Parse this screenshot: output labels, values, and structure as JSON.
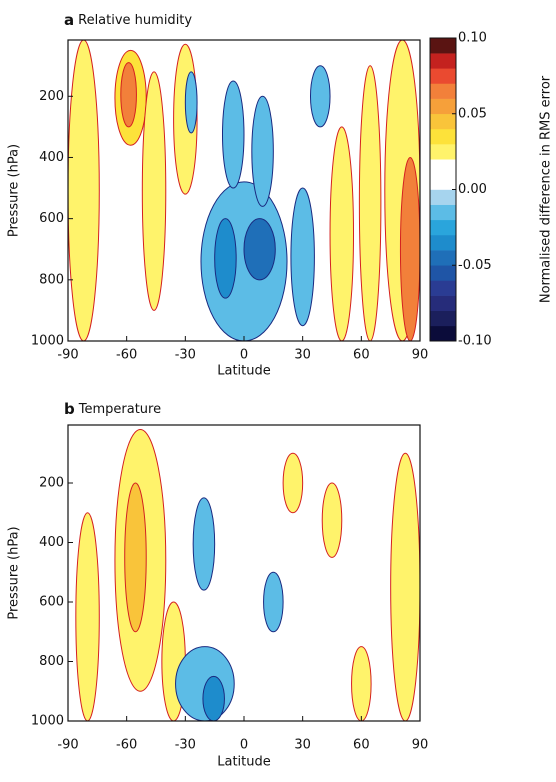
{
  "chart_data": [
    {
      "type": "contour",
      "panel_label": "a",
      "title": "Relative humidity",
      "x_label": "Latitude",
      "y_label": "Pressure (hPa)",
      "xlim": [
        -90,
        90
      ],
      "xticks": [
        -90,
        -60,
        -30,
        0,
        30,
        60,
        90
      ],
      "ylim": [
        1000,
        16
      ],
      "yticks": [
        200,
        400,
        600,
        800,
        1000
      ],
      "regions": [
        {
          "lat": [
            -90,
            -74
          ],
          "p": [
            16,
            1000
          ],
          "value": 0.02
        },
        {
          "lat": [
            -66,
            -50
          ],
          "p": [
            50,
            360
          ],
          "value": 0.03
        },
        {
          "lat": [
            -63,
            -55
          ],
          "p": [
            90,
            300
          ],
          "value": 0.06
        },
        {
          "lat": [
            -52,
            -40
          ],
          "p": [
            120,
            900
          ],
          "value": 0.02
        },
        {
          "lat": [
            -36,
            -24
          ],
          "p": [
            30,
            520
          ],
          "value": 0.02
        },
        {
          "lat": [
            -30,
            -24
          ],
          "p": [
            120,
            320
          ],
          "value": -0.02
        },
        {
          "lat": [
            -22,
            22
          ],
          "p": [
            480,
            1000
          ],
          "value": -0.02
        },
        {
          "lat": [
            -15,
            -4
          ],
          "p": [
            600,
            860
          ],
          "value": -0.04
        },
        {
          "lat": [
            0,
            16
          ],
          "p": [
            600,
            800
          ],
          "value": -0.05
        },
        {
          "lat": [
            -11,
            0
          ],
          "p": [
            150,
            500
          ],
          "value": -0.02
        },
        {
          "lat": [
            4,
            15
          ],
          "p": [
            200,
            560
          ],
          "value": -0.02
        },
        {
          "lat": [
            24,
            36
          ],
          "p": [
            500,
            950
          ],
          "value": -0.02
        },
        {
          "lat": [
            34,
            44
          ],
          "p": [
            100,
            300
          ],
          "value": -0.02
        },
        {
          "lat": [
            44,
            56
          ],
          "p": [
            300,
            1000
          ],
          "value": 0.02
        },
        {
          "lat": [
            59,
            70
          ],
          "p": [
            100,
            1000
          ],
          "value": 0.02
        },
        {
          "lat": [
            72,
            90
          ],
          "p": [
            16,
            1000
          ],
          "value": 0.02
        },
        {
          "lat": [
            80,
            90
          ],
          "p": [
            400,
            1000
          ],
          "value": 0.06
        }
      ],
      "colorbar": {
        "label": "Normalised difference in RMS error",
        "lim": [
          -0.1,
          0.1
        ],
        "colors": [
          "#0b0c3a",
          "#1b1f5c",
          "#262c7a",
          "#2a3c93",
          "#1f55a6",
          "#1f6fb8",
          "#1e8ccc",
          "#2aa5dc",
          "#5cbce6",
          "#a6d4ee",
          "#ffffff",
          "#ffffff",
          "#fff36b",
          "#fde23a",
          "#f9c43a",
          "#f6a03a",
          "#f2803a",
          "#ea4a30",
          "#c4221f",
          "#5a1412"
        ],
        "ticks": [
          {
            "value": 0.1,
            "label": "0.10"
          },
          {
            "value": 0.05,
            "label": "0.05"
          },
          {
            "value": 0,
            "label": "0.00"
          },
          {
            "value": -0.05,
            "label": "-0.05"
          },
          {
            "value": -0.1,
            "label": "-0.10"
          }
        ]
      }
    },
    {
      "type": "contour",
      "panel_label": "b",
      "title": "Temperature",
      "x_label": "Latitude",
      "y_label": "Pressure (hPa)",
      "xlim": [
        -90,
        90
      ],
      "xticks": [
        -90,
        -60,
        -30,
        0,
        30,
        60,
        90
      ],
      "ylim": [
        1000,
        5
      ],
      "yticks": [
        200,
        400,
        600,
        800,
        1000
      ],
      "regions": [
        {
          "lat": [
            -86,
            -74
          ],
          "p": [
            300,
            1000
          ],
          "value": 0.02
        },
        {
          "lat": [
            -66,
            -40
          ],
          "p": [
            20,
            900
          ],
          "value": 0.02
        },
        {
          "lat": [
            -61,
            -50
          ],
          "p": [
            200,
            700
          ],
          "value": 0.04
        },
        {
          "lat": [
            -42,
            -30
          ],
          "p": [
            600,
            1000
          ],
          "value": 0.02
        },
        {
          "lat": [
            -35,
            -5
          ],
          "p": [
            750,
            1000
          ],
          "value": -0.02
        },
        {
          "lat": [
            -21,
            -10
          ],
          "p": [
            850,
            1000
          ],
          "value": -0.04
        },
        {
          "lat": [
            -26,
            -15
          ],
          "p": [
            250,
            560
          ],
          "value": -0.02
        },
        {
          "lat": [
            10,
            20
          ],
          "p": [
            500,
            700
          ],
          "value": -0.02
        },
        {
          "lat": [
            20,
            30
          ],
          "p": [
            100,
            300
          ],
          "value": 0.02
        },
        {
          "lat": [
            40,
            50
          ],
          "p": [
            200,
            450
          ],
          "value": 0.02
        },
        {
          "lat": [
            55,
            65
          ],
          "p": [
            750,
            1000
          ],
          "value": 0.02
        },
        {
          "lat": [
            75,
            90
          ],
          "p": [
            100,
            1000
          ],
          "value": 0.02
        }
      ]
    }
  ]
}
